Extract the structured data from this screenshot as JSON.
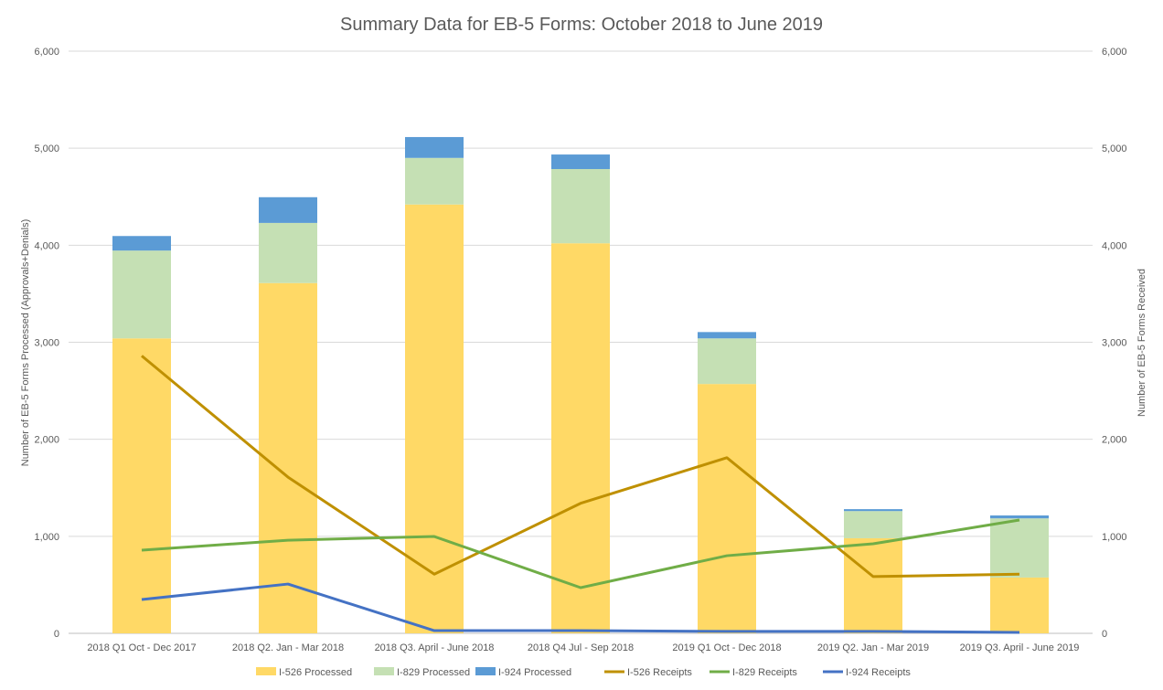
{
  "chart_data": {
    "type": "bar+line",
    "title": "Summary Data for EB-5 Forms: October 2018 to June 2019",
    "ylabel": "Number of EB-5 Forms Processed (Approvals+Denials)",
    "y2label": "Number of EB-5 Forms Received",
    "ylim": [
      0,
      6000
    ],
    "y2lim": [
      0,
      6000
    ],
    "yticks": [
      "0",
      "1,000",
      "2,000",
      "3,000",
      "4,000",
      "5,000",
      "6,000"
    ],
    "grid": true,
    "legend": "bottom",
    "categories": [
      "2018 Q1 Oct - Dec 2017",
      "2018 Q2. Jan - Mar 2018",
      "2018 Q3. April - June 2018",
      "2018 Q4 Jul - Sep 2018",
      "2019  Q1 Oct - Dec 2018",
      "2019 Q2. Jan - Mar 2019",
      "2019 Q3. April - June 2019"
    ],
    "bar_series": [
      {
        "name": "I-526 Processed",
        "color": "#FFD966",
        "values": [
          3040,
          3610,
          4420,
          4020,
          2570,
          980,
          575
        ]
      },
      {
        "name": "I-829 Processed",
        "color": "#C5E0B4",
        "values": [
          905,
          620,
          480,
          765,
          470,
          280,
          610
        ]
      },
      {
        "name": "I-924 Processed",
        "color": "#5B9BD5",
        "values": [
          150,
          265,
          215,
          150,
          65,
          20,
          30
        ]
      }
    ],
    "line_series": [
      {
        "name": "I-526 Receipts",
        "color": "#BF9000",
        "values": [
          2860,
          1610,
          610,
          1340,
          1810,
          585,
          610
        ]
      },
      {
        "name": "I-829 Receipts",
        "color": "#70AD47",
        "values": [
          857,
          960,
          998,
          471,
          800,
          923,
          1168
        ]
      },
      {
        "name": "I-924 Receipts",
        "color": "#4472C4",
        "values": [
          348,
          508,
          28,
          28,
          20,
          20,
          10
        ]
      }
    ]
  }
}
